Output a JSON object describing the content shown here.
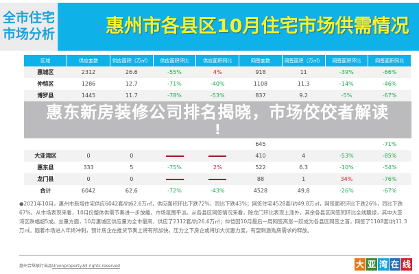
{
  "banner": {
    "side_label_1": "全市住宅",
    "side_label_2": "市场分析",
    "title": "惠州市各县区10月住宅市场供需情况"
  },
  "table": {
    "headers": [
      "区域",
      "供应套数",
      "供应面积（万㎡）",
      "供应面积环比",
      "供应面积同比",
      "网签套数",
      "网签面积（万㎡）",
      "网签面积环比",
      "网签面积同比"
    ],
    "rows": [
      [
        "惠城区",
        "2312",
        "26.6",
        "-55%",
        "4%",
        "918",
        "11",
        "-39%",
        "-66%"
      ],
      [
        "仲恺区",
        "1286",
        "12.7",
        "-71%",
        "-40%",
        "1108",
        "11.3",
        "-14%",
        "-46%"
      ],
      [
        "博罗县",
        "1445",
        "11.7",
        "-78%",
        "-53%",
        "837",
        "9.2",
        "-5%",
        "-67%"
      ],
      [
        "",
        "",
        "",
        "",
        "",
        "645",
        "",
        "",
        "-71%"
      ],
      [
        "大亚湾区",
        "0",
        "0",
        "—",
        "—",
        "410",
        "4",
        "-53%",
        "-85%"
      ],
      [
        "惠东县",
        "333",
        "5",
        "-75%",
        "2%",
        "522",
        "6.3",
        "-10%",
        "-54%"
      ],
      [
        "龙门县",
        "0",
        "0",
        "—",
        "—",
        "88",
        "1",
        "34%",
        "-76%"
      ],
      [
        "合计",
        "6042",
        "62.6",
        "-72%",
        "-43%",
        "4528",
        "49.8",
        "-26%",
        "-67%"
      ]
    ]
  },
  "overlay": {
    "title": "惠东新房装修公司排名揭晓，市场佼佼者解读",
    "bang": "!"
  },
  "paragraph": "●2021年10月，惠州市新增住宅供应6042套/约62.6万㎡，供应面积环比下跌72%，同比下跌43%；网签住宅4528套/约49.8万㎡，网签面积环比下跌26%，同比下跌67%。从市场表现来看，10月份整体供需节奏进一步放缓，市场氛围平淡。从各县区网签情况来看，除龙门环比表现上涨外，其余各县区网签同环比全线飘绿，其中大亚湾区跌幅超5成。总量方面，10月惠城区供应量为全市最高，供应了2312套/约26.6万㎡；仲恺因10月最后一周网签高涨一跃成为各县区网签之首，网签了1108套/约11.3万㎡。随着市场进入年终冲刺，预计房企在推货节奏上将有所加快，压力之下房企或将加大优惠力度，有望刺激购房需求的释放。",
  "footer": {
    "prefix": "惠州合纵联行出品",
    "link": "Unionproperty.All rights reserved"
  },
  "logo": [
    "大",
    "亚",
    "湾",
    "在",
    "线"
  ],
  "colors": {
    "accent": "#0eb1e8",
    "title_yellow": "#f2f22e",
    "negative": "#1aa84a",
    "positive": "#d2202a"
  }
}
